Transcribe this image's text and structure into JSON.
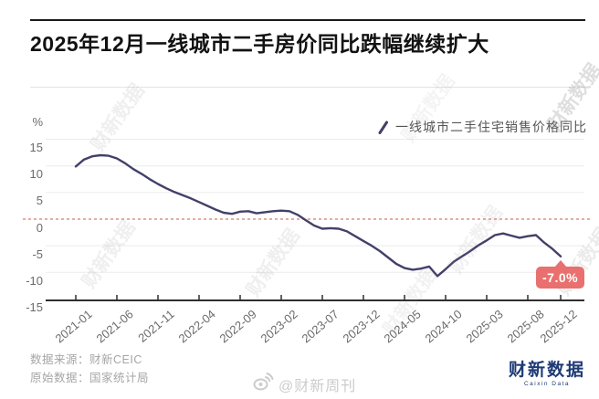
{
  "header": {
    "title": "2025年12月一线城市二手房价同比跌幅继续扩大"
  },
  "footer": {
    "source_line1": "数据来源：财新CEIC",
    "source_line2": "原始数据：国家统计局",
    "weibo_handle": "@财新周刊",
    "brand": "财新数据",
    "brand_sub": "Caixin Data"
  },
  "watermark_text": "财新数据",
  "chart_data": {
    "type": "line",
    "legend": "一线城市二手住宅销售价格同比",
    "unit_label": "%",
    "line_color": "#43406a",
    "grid_color": "#ececec",
    "zero_line_color": "#dd9184",
    "axis_color": "#2f2f2f",
    "annotation_bg": "#e9706e",
    "ylim": [
      -15,
      15
    ],
    "y_ticks": [
      15,
      10,
      5,
      0,
      -5,
      -10,
      -15
    ],
    "x_tick_labels": [
      "2021-01",
      "2021-06",
      "2021-11",
      "2022-04",
      "2022-09",
      "2023-02",
      "2023-07",
      "2023-12",
      "2024-05",
      "2024-10",
      "2025-03",
      "2025-08",
      "2025-12"
    ],
    "x_tick_months": [
      0,
      5,
      10,
      15,
      20,
      25,
      30,
      35,
      40,
      45,
      50,
      55,
      59
    ],
    "x_start": "2021-01",
    "x_end": "2025-12",
    "x_interval": "month",
    "months": [
      "2021-01",
      "2021-02",
      "2021-03",
      "2021-04",
      "2021-05",
      "2021-06",
      "2021-07",
      "2021-08",
      "2021-09",
      "2021-10",
      "2021-11",
      "2021-12",
      "2022-01",
      "2022-02",
      "2022-03",
      "2022-04",
      "2022-05",
      "2022-06",
      "2022-07",
      "2022-08",
      "2022-09",
      "2022-10",
      "2022-11",
      "2022-12",
      "2023-01",
      "2023-02",
      "2023-03",
      "2023-04",
      "2023-05",
      "2023-06",
      "2023-07",
      "2023-08",
      "2023-09",
      "2023-10",
      "2023-11",
      "2023-12",
      "2024-01",
      "2024-02",
      "2024-03",
      "2024-04",
      "2024-05",
      "2024-06",
      "2024-07",
      "2024-08",
      "2024-09",
      "2024-10",
      "2024-11",
      "2024-12",
      "2025-01",
      "2025-02",
      "2025-03",
      "2025-04",
      "2025-05",
      "2025-06",
      "2025-07",
      "2025-08",
      "2025-09",
      "2025-10",
      "2025-11",
      "2025-12"
    ],
    "series": [
      {
        "name": "一线城市二手住宅销售价格同比",
        "values": [
          9.9,
          11.2,
          11.8,
          12.0,
          11.9,
          11.4,
          10.5,
          9.4,
          8.5,
          7.5,
          6.6,
          5.8,
          5.1,
          4.5,
          3.9,
          3.2,
          2.5,
          1.8,
          1.2,
          1.0,
          1.4,
          1.5,
          1.1,
          1.3,
          1.5,
          1.6,
          1.5,
          0.8,
          -0.2,
          -1.2,
          -1.8,
          -1.7,
          -1.8,
          -2.3,
          -3.2,
          -4.1,
          -5.0,
          -6.0,
          -7.2,
          -8.4,
          -9.2,
          -9.5,
          -9.3,
          -8.9,
          -10.7,
          -9.4,
          -8.0,
          -7.0,
          -6.0,
          -4.9,
          -4.0,
          -3.0,
          -2.7,
          -3.1,
          -3.5,
          -3.2,
          -3.0,
          -4.4,
          -5.6,
          -7.0
        ]
      }
    ],
    "annotation": {
      "text": "-7.0%",
      "month_index": 59,
      "value": -7.0
    }
  }
}
